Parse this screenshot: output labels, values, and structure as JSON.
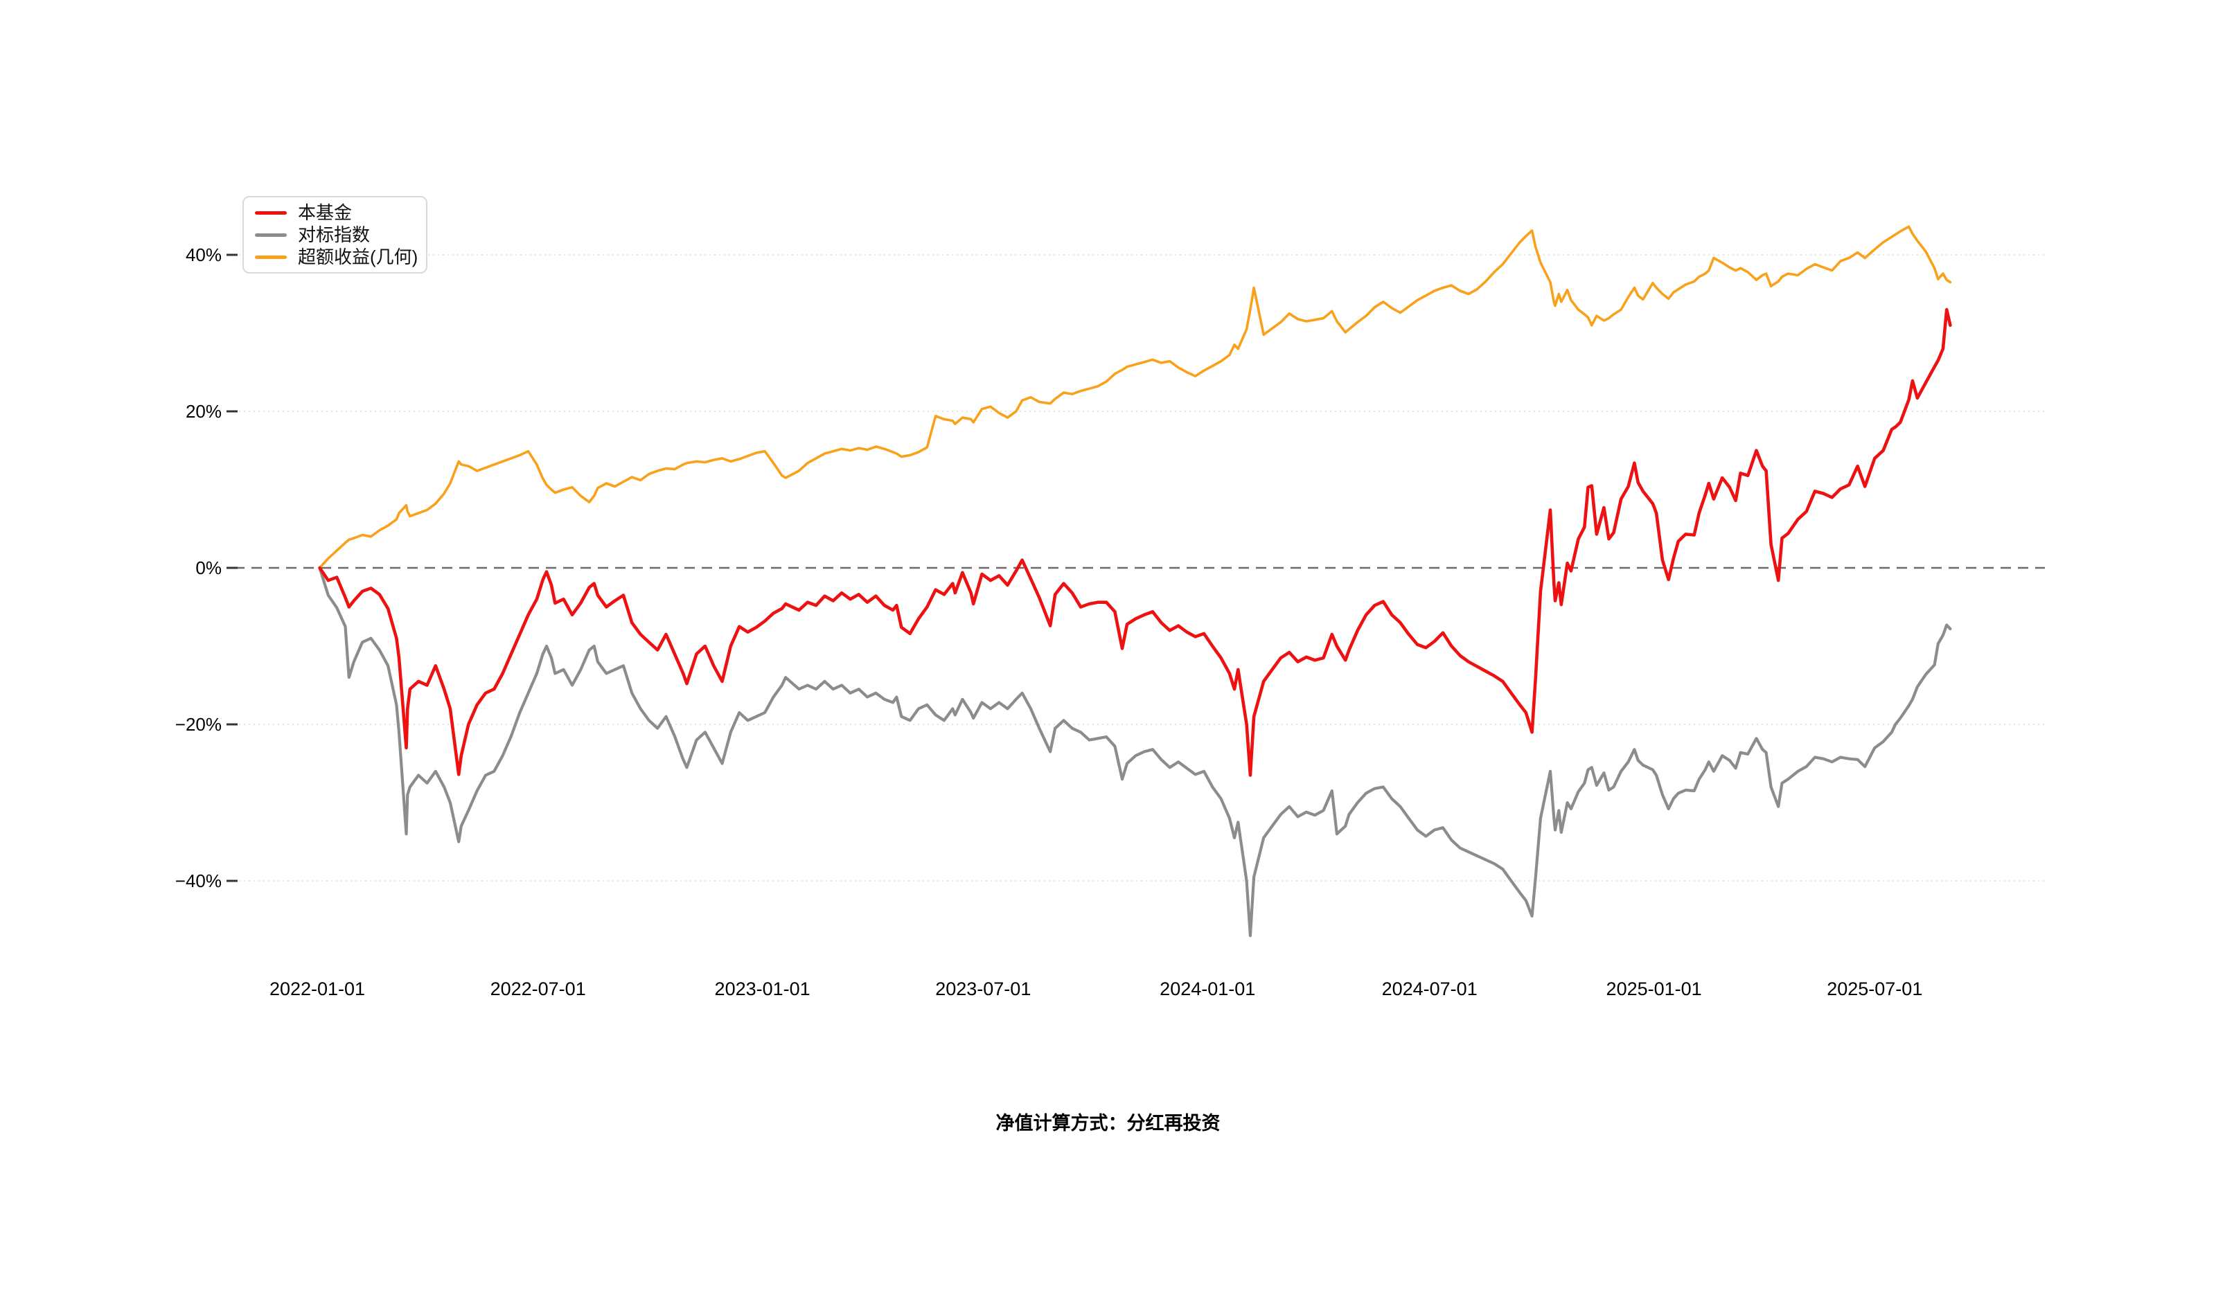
{
  "footnote": "净值计算方式：分红再投资",
  "chart_data": {
    "type": "line",
    "title": "",
    "xlabel": "",
    "ylabel": "",
    "grid": "horizontal-dotted",
    "zero_line": "dashed",
    "legend_position": "top-left",
    "x_axis": {
      "start_date": "2022-01-01",
      "tick_labels": [
        "2022-01-01",
        "2022-07-01",
        "2023-01-01",
        "2023-07-01",
        "2024-01-01",
        "2024-07-01",
        "2025-01-01",
        "2025-07-01"
      ],
      "tick_day_offsets": [
        0,
        181,
        365,
        546,
        730,
        912,
        1096,
        1277
      ]
    },
    "y_axis": {
      "tick_labels": [
        "40%",
        "20%",
        "0%",
        "−20%",
        "−40%"
      ],
      "ticks_pct": [
        40,
        20,
        0,
        -20,
        -40
      ],
      "ylim": [
        -50,
        50
      ],
      "unit": "%"
    },
    "legend": [
      {
        "label": "本基金",
        "color": "#ee1111"
      },
      {
        "label": "对标指数",
        "color": "#8c8c8c"
      },
      {
        "label": "超额收益(几何)",
        "color": "#f9a11a"
      }
    ],
    "series_meta": [
      {
        "name": "本基金",
        "color": "#ee1111",
        "width": 4.6
      },
      {
        "name": "对标指数",
        "color": "#8c8c8c",
        "width": 4.2
      },
      {
        "name": "超额收益(几何)",
        "color": "#f9a11a",
        "width": 3.6
      }
    ],
    "points_format": [
      "day_offset_from_2022-01-01",
      "fund_pct",
      "index_pct",
      "excess_geom_pct"
    ],
    "points": [
      [
        2,
        0,
        0,
        0
      ],
      [
        9,
        -1.6,
        -3.5,
        1.2
      ],
      [
        16,
        -1.2,
        -5.1,
        2.2
      ],
      [
        23,
        -3.8,
        -7.5,
        3.2
      ],
      [
        26,
        -5,
        -14,
        3.6
      ],
      [
        30,
        -4.2,
        -12,
        3.8
      ],
      [
        37,
        -3,
        -9.5,
        4.2
      ],
      [
        44,
        -2.6,
        -9,
        4
      ],
      [
        51,
        -3.4,
        -10.5,
        4.8
      ],
      [
        58,
        -5.2,
        -12.5,
        5.4
      ],
      [
        65,
        -9,
        -17.5,
        6.2
      ],
      [
        67,
        -11.5,
        -21,
        7
      ],
      [
        73,
        -23,
        -34,
        8
      ],
      [
        74,
        -18,
        -29,
        7.2
      ],
      [
        76,
        -15.5,
        -28,
        6.6
      ],
      [
        83,
        -14.5,
        -26.5,
        7
      ],
      [
        90,
        -15,
        -27.5,
        7.4
      ],
      [
        97,
        -12.5,
        -26,
        8.2
      ],
      [
        104,
        -15.5,
        -28,
        9.5
      ],
      [
        109,
        -18,
        -30,
        10.8
      ],
      [
        116,
        -26.4,
        -35,
        13.6
      ],
      [
        118,
        -24,
        -33,
        13.2
      ],
      [
        124,
        -20,
        -31,
        13
      ],
      [
        131,
        -17.5,
        -28.5,
        12.4
      ],
      [
        138,
        -16,
        -26.5,
        12.8
      ],
      [
        145,
        -15.5,
        -26,
        13.2
      ],
      [
        152,
        -13.5,
        -24,
        13.6
      ],
      [
        159,
        -11,
        -21.5,
        14
      ],
      [
        166,
        -8.5,
        -18.5,
        14.4
      ],
      [
        173,
        -6,
        -16,
        14.9
      ],
      [
        180,
        -4,
        -13.5,
        13.2
      ],
      [
        185,
        -1.5,
        -11,
        11.4
      ],
      [
        188,
        -0.5,
        -10,
        10.6
      ],
      [
        192,
        -2.2,
        -11.5,
        10
      ],
      [
        195,
        -4.5,
        -13.5,
        9.6
      ],
      [
        202,
        -4,
        -13,
        10
      ],
      [
        209,
        -6,
        -15,
        10.3
      ],
      [
        216,
        -4.5,
        -13,
        9.2
      ],
      [
        223,
        -2.5,
        -10.5,
        8.4
      ],
      [
        227,
        -2,
        -10,
        9.2
      ],
      [
        230,
        -3.5,
        -12,
        10.2
      ],
      [
        237,
        -5,
        -13.5,
        10.8
      ],
      [
        244,
        -4.2,
        -13,
        10.4
      ],
      [
        251,
        -3.5,
        -12.5,
        11
      ],
      [
        258,
        -7,
        -16,
        11.6
      ],
      [
        265,
        -8.5,
        -18,
        11.2
      ],
      [
        272,
        -9.5,
        -19.5,
        12
      ],
      [
        279,
        -10.5,
        -20.5,
        12.4
      ],
      [
        286,
        -8.5,
        -19,
        12.7
      ],
      [
        293,
        -11,
        -21.5,
        12.6
      ],
      [
        300,
        -13.5,
        -24.5,
        13.2
      ],
      [
        303,
        -14.8,
        -25.5,
        13.4
      ],
      [
        311,
        -11,
        -22,
        13.6
      ],
      [
        318,
        -10,
        -21,
        13.5
      ],
      [
        325,
        -12.5,
        -23,
        13.8
      ],
      [
        332,
        -14.5,
        -25,
        14
      ],
      [
        339,
        -10,
        -21,
        13.6
      ],
      [
        346,
        -7.5,
        -18.5,
        13.9
      ],
      [
        353,
        -8.2,
        -19.5,
        14.3
      ],
      [
        360,
        -7.6,
        -19,
        14.7
      ],
      [
        367,
        -6.8,
        -18.5,
        14.9
      ],
      [
        374,
        -5.8,
        -16.5,
        13.4
      ],
      [
        381,
        -5.2,
        -15,
        11.8
      ],
      [
        384,
        -4.6,
        -14,
        11.5
      ],
      [
        395,
        -5.4,
        -15.5,
        12.4
      ],
      [
        402,
        -4.4,
        -15,
        13.4
      ],
      [
        409,
        -4.8,
        -15.5,
        14
      ],
      [
        416,
        -3.6,
        -14.5,
        14.6
      ],
      [
        423,
        -4.2,
        -15.5,
        14.9
      ],
      [
        430,
        -3.2,
        -15,
        15.2
      ],
      [
        437,
        -4,
        -16,
        15
      ],
      [
        444,
        -3.4,
        -15.5,
        15.3
      ],
      [
        451,
        -4.4,
        -16.5,
        15.1
      ],
      [
        458,
        -3.6,
        -16,
        15.5
      ],
      [
        465,
        -4.8,
        -16.8,
        15.2
      ],
      [
        472,
        -5.4,
        -17.2,
        14.8
      ],
      [
        475,
        -4.8,
        -16.5,
        14.6
      ],
      [
        479,
        -7.6,
        -19,
        14.2
      ],
      [
        486,
        -8.4,
        -19.5,
        14.4
      ],
      [
        493,
        -6.5,
        -18,
        14.8
      ],
      [
        500,
        -5,
        -17.5,
        15.4
      ],
      [
        507,
        -2.8,
        -18.8,
        19.4
      ],
      [
        514,
        -3.4,
        -19.5,
        19
      ],
      [
        521,
        -2,
        -18,
        18.8
      ],
      [
        523,
        -3.2,
        -18.8,
        18.4
      ],
      [
        529,
        -0.6,
        -16.8,
        19.2
      ],
      [
        536,
        -3.2,
        -18.5,
        19
      ],
      [
        538,
        -4.6,
        -19.2,
        18.6
      ],
      [
        545,
        -0.8,
        -17.2,
        20.3
      ],
      [
        552,
        -1.6,
        -18,
        20.6
      ],
      [
        559,
        -1,
        -17.2,
        19.8
      ],
      [
        566,
        -2.2,
        -18,
        19.2
      ],
      [
        573,
        -0.4,
        -16.8,
        20
      ],
      [
        578,
        1,
        -16,
        21.4
      ],
      [
        585,
        -1.4,
        -18,
        21.8
      ],
      [
        592,
        -3.8,
        -20.5,
        21.2
      ],
      [
        601,
        -7.4,
        -23.5,
        21
      ],
      [
        605,
        -3.4,
        -20.5,
        21.6
      ],
      [
        612,
        -2,
        -19.5,
        22.4
      ],
      [
        619,
        -3.2,
        -20.5,
        22.2
      ],
      [
        626,
        -5,
        -21,
        22.6
      ],
      [
        633,
        -4.6,
        -22,
        22.9
      ],
      [
        640,
        -4.4,
        -21.8,
        23.2
      ],
      [
        647,
        -4.4,
        -21.6,
        23.8
      ],
      [
        654,
        -5.6,
        -22.8,
        24.8
      ],
      [
        660,
        -10.3,
        -27,
        25.3
      ],
      [
        664,
        -7.2,
        -25,
        25.7
      ],
      [
        671,
        -6.5,
        -24,
        26
      ],
      [
        678,
        -6,
        -23.5,
        26.3
      ],
      [
        685,
        -5.6,
        -23.2,
        26.6
      ],
      [
        692,
        -7,
        -24.5,
        26.2
      ],
      [
        699,
        -8,
        -25.5,
        26.4
      ],
      [
        706,
        -7.4,
        -24.8,
        25.6
      ],
      [
        713,
        -8.2,
        -25.6,
        25
      ],
      [
        720,
        -8.8,
        -26.4,
        24.5
      ],
      [
        727,
        -8.4,
        -26,
        25.2
      ],
      [
        734,
        -10,
        -28,
        25.8
      ],
      [
        741,
        -11.5,
        -29.5,
        26.4
      ],
      [
        748,
        -13.5,
        -32,
        27.2
      ],
      [
        752,
        -15.5,
        -34.5,
        28.5
      ],
      [
        755,
        -13,
        -32.5,
        28
      ],
      [
        762,
        -20,
        -40,
        30.5
      ],
      [
        765,
        -26.5,
        -47,
        33
      ],
      [
        768,
        -19,
        -39.5,
        35.8
      ],
      [
        776,
        -14.5,
        -34.5,
        29.8
      ],
      [
        783,
        -13,
        -33,
        30.6
      ],
      [
        790,
        -11.5,
        -31.5,
        31.4
      ],
      [
        797,
        -10.8,
        -30.5,
        32.5
      ],
      [
        804,
        -12,
        -31.8,
        31.8
      ],
      [
        811,
        -11.4,
        -31.2,
        31.5
      ],
      [
        818,
        -11.8,
        -31.6,
        31.7
      ],
      [
        825,
        -11.5,
        -31,
        31.9
      ],
      [
        832,
        -8.5,
        -28.5,
        32.8
      ],
      [
        836,
        -10,
        -34,
        31.5
      ],
      [
        843,
        -11.8,
        -33,
        30.1
      ],
      [
        846,
        -10.5,
        -31.5,
        30.5
      ],
      [
        853,
        -8,
        -30,
        31.4
      ],
      [
        860,
        -6,
        -28.8,
        32.2
      ],
      [
        867,
        -4.8,
        -28.2,
        33.3
      ],
      [
        874,
        -4.3,
        -28,
        34
      ],
      [
        881,
        -6,
        -29.5,
        33.2
      ],
      [
        888,
        -7,
        -30.5,
        32.6
      ],
      [
        895,
        -8.5,
        -32,
        33.4
      ],
      [
        902,
        -9.8,
        -33.5,
        34.2
      ],
      [
        909,
        -10.2,
        -34.3,
        34.8
      ],
      [
        916,
        -9.4,
        -33.5,
        35.4
      ],
      [
        923,
        -8.3,
        -33.2,
        35.8
      ],
      [
        930,
        -10,
        -34.8,
        36.1
      ],
      [
        937,
        -11.2,
        -35.8,
        35.4
      ],
      [
        944,
        -12,
        -36.3,
        35
      ],
      [
        951,
        -12.6,
        -36.8,
        35.6
      ],
      [
        958,
        -13.2,
        -37.3,
        36.6
      ],
      [
        965,
        -13.8,
        -37.8,
        37.8
      ],
      [
        972,
        -14.5,
        -38.5,
        38.8
      ],
      [
        979,
        -16,
        -40,
        40.2
      ],
      [
        986,
        -17.5,
        -41.5,
        41.6
      ],
      [
        991,
        -18.5,
        -42.5,
        42.4
      ],
      [
        996,
        -21,
        -44.5,
        43.1
      ],
      [
        999,
        -14,
        -39.5,
        41
      ],
      [
        1003,
        -3,
        -32,
        39
      ],
      [
        1011,
        7.4,
        -26,
        36.5
      ],
      [
        1014,
        -1.9,
        -31.9,
        34
      ],
      [
        1015,
        -4.2,
        -33.5,
        33.5
      ],
      [
        1018,
        -1.9,
        -31,
        35
      ],
      [
        1020,
        -4.7,
        -33.8,
        34
      ],
      [
        1025,
        0.6,
        -30,
        35.5
      ],
      [
        1028,
        -0.4,
        -30.8,
        34.2
      ],
      [
        1034,
        3.7,
        -28.6,
        33
      ],
      [
        1039,
        5.2,
        -27.5,
        32.4
      ],
      [
        1042,
        10.3,
        -25.8,
        32
      ],
      [
        1045,
        10.5,
        -25.5,
        31
      ],
      [
        1049,
        4.3,
        -27.8,
        32.2
      ],
      [
        1055,
        7.7,
        -26.2,
        31.6
      ],
      [
        1059,
        3.7,
        -28.4,
        31.9
      ],
      [
        1063,
        4.5,
        -28,
        32.4
      ],
      [
        1069,
        8.8,
        -26,
        33
      ],
      [
        1075,
        10.4,
        -24.8,
        34.6
      ],
      [
        1080,
        13.4,
        -23.2,
        35.8
      ],
      [
        1083,
        10.9,
        -24.6,
        34.8
      ],
      [
        1087,
        9.8,
        -25.2,
        34.3
      ],
      [
        1095,
        8.2,
        -25.8,
        36.4
      ],
      [
        1098,
        7,
        -26.5,
        35.8
      ],
      [
        1103,
        1,
        -29,
        35
      ],
      [
        1108,
        -1.5,
        -30.8,
        34.4
      ],
      [
        1112,
        1.2,
        -29.5,
        35.2
      ],
      [
        1116,
        3.4,
        -28.8,
        35.6
      ],
      [
        1122,
        4.3,
        -28.4,
        36.2
      ],
      [
        1129,
        4.2,
        -28.5,
        36.6
      ],
      [
        1133,
        7,
        -27,
        37.2
      ],
      [
        1138,
        9.3,
        -25.8,
        37.6
      ],
      [
        1141,
        10.8,
        -24.8,
        38
      ],
      [
        1145,
        8.8,
        -26,
        39.6
      ],
      [
        1152,
        11.5,
        -24,
        39
      ],
      [
        1158,
        10.3,
        -24.6,
        38.4
      ],
      [
        1163,
        8.6,
        -25.6,
        38
      ],
      [
        1167,
        12.1,
        -23.6,
        38.3
      ],
      [
        1173,
        11.8,
        -23.8,
        37.8
      ],
      [
        1180,
        15,
        -21.8,
        36.8
      ],
      [
        1185,
        13,
        -23.2,
        37.4
      ],
      [
        1188,
        12.4,
        -23.6,
        37.6
      ],
      [
        1192,
        3,
        -28,
        36
      ],
      [
        1198,
        -1.6,
        -30.5,
        36.6
      ],
      [
        1201,
        3.8,
        -27.5,
        37.2
      ],
      [
        1206,
        4.4,
        -27,
        37.6
      ],
      [
        1214,
        6.2,
        -26,
        37.4
      ],
      [
        1221,
        7.2,
        -25.4,
        38.2
      ],
      [
        1228,
        9.8,
        -24.2,
        38.8
      ],
      [
        1235,
        9.5,
        -24.4,
        38.4
      ],
      [
        1242,
        9,
        -24.8,
        38
      ],
      [
        1249,
        10.1,
        -24.2,
        39.2
      ],
      [
        1256,
        10.6,
        -24.4,
        39.6
      ],
      [
        1263,
        13,
        -24.5,
        40.3
      ],
      [
        1269,
        10.4,
        -25.4,
        39.6
      ],
      [
        1277,
        14,
        -23,
        40.7
      ],
      [
        1284,
        15,
        -22.2,
        41.6
      ],
      [
        1291,
        17.7,
        -21,
        42.3
      ],
      [
        1294,
        18,
        -20,
        42.6
      ],
      [
        1298,
        18.6,
        -19.2,
        43
      ],
      [
        1305,
        21.5,
        -17.6,
        43.6
      ],
      [
        1308,
        23.9,
        -16.8,
        42.7
      ],
      [
        1312,
        21.7,
        -15.2,
        41.8
      ],
      [
        1319,
        23.7,
        -13.6,
        40.4
      ],
      [
        1326,
        25.7,
        -12.4,
        38.3
      ],
      [
        1329,
        26.5,
        -9.7,
        36.9
      ],
      [
        1333,
        28,
        -8.6,
        37.6
      ],
      [
        1336,
        33,
        -7.3,
        36.8
      ],
      [
        1339,
        31,
        -7.8,
        36.5
      ]
    ]
  },
  "style": {
    "background": "#ffffff",
    "grid_color": "#e4e4e4",
    "zero_line_color": "#6b6b6b",
    "tick_color": "#333333",
    "axis_text_color": "#000000",
    "legend_border_color": "#d9d9d9"
  }
}
